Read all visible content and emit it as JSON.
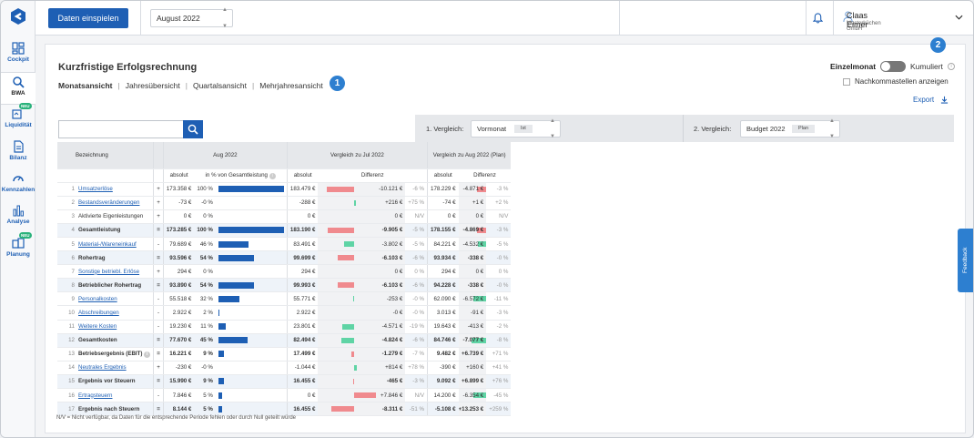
{
  "nav": {
    "items": [
      {
        "label": "Cockpit",
        "icon": "grid-icon"
      },
      {
        "label": "BWA",
        "icon": "bwa-search-icon",
        "active": true
      },
      {
        "label": "Liquidität",
        "icon": "liquidity-icon",
        "badge": "NEU"
      },
      {
        "label": "Bilanz",
        "icon": "document-icon"
      },
      {
        "label": "Kennzahlen",
        "icon": "gauge-icon"
      },
      {
        "label": "Analyse",
        "icon": "bar-chart-icon"
      },
      {
        "label": "Planung",
        "icon": "planning-icon",
        "badge": "NEU"
      }
    ]
  },
  "topbar": {
    "import_label": "Daten einspielen",
    "period": "August 2022",
    "user_name": "Claas Eimer",
    "user_company": "Musterküchen GmbH"
  },
  "page": {
    "title": "Kurzfristige Erfolgsrechnung",
    "tabs": [
      "Monatsansicht",
      "Jahresübersicht",
      "Quartalsansicht",
      "Mehrjahresansicht"
    ],
    "marker1": "1",
    "marker2": "2",
    "toggle_left": "Einzelmonat",
    "toggle_right": "Kumuliert",
    "decimals_label": "Nachkommastellen anzeigen",
    "export_label": "Export",
    "search_placeholder": "",
    "footnote": "N/V = Nicht verfügbar, da Daten für die entsprechende Periode fehlen oder durch Null geteilt würde",
    "feedback_label": "Feedback"
  },
  "compare": {
    "c1_label": "1. Vergleich:",
    "c1_value": "Vormonat",
    "c1_tag": "Ist",
    "c2_label": "2. Vergleich:",
    "c2_value": "Budget 2022",
    "c2_tag": "Plan"
  },
  "table": {
    "h_name": "Bezeichnung",
    "h_aug": "Aug 2022",
    "h_cmp1": "Vergleich zu Jul 2022",
    "h_cmp2": "Vergleich zu Aug 2022 (Plan)",
    "h_abs": "absolut",
    "h_pct": "in % von Gesamtleistung",
    "h_diff": "Differenz",
    "rows": [
      {
        "n": "1",
        "name": "Umsatzerlöse",
        "link": true,
        "op": "+",
        "abs": "173.358 €",
        "pct": "100 %",
        "pv": 100,
        "a1": "183.479 €",
        "d1": "-10.121 €",
        "p1": "-6 %",
        "d1v": -10121,
        "a2": "178.229 €",
        "d2": "-4.871 €",
        "p2": "-3 %",
        "d2v": -4871
      },
      {
        "n": "2",
        "name": "Bestandsveränderungen",
        "link": true,
        "op": "+",
        "abs": "-73 €",
        "pct": "-0 %",
        "pv": 0,
        "a1": "-288 €",
        "d1": "+216 €",
        "p1": "+75 %",
        "d1v": 216,
        "a2": "-74 €",
        "d2": "+1 €",
        "p2": "+2 %",
        "d2v": 1
      },
      {
        "n": "3",
        "name": "Aktivierte Eigenleistungen",
        "op": "+",
        "abs": "0 €",
        "pct": "0 %",
        "pv": 0,
        "a1": "0 €",
        "d1": "0 €",
        "p1": "N/V",
        "d1v": 0,
        "a2": "0 €",
        "d2": "0 €",
        "p2": "N/V",
        "d2v": 0
      },
      {
        "n": "4",
        "name": "Gesamtleistung",
        "bold": true,
        "shade": true,
        "op": "=",
        "abs": "173.285 €",
        "pct": "100 %",
        "pv": 100,
        "a1": "183.190 €",
        "d1": "-9.905 €",
        "p1": "-5 %",
        "d1v": -9905,
        "a2": "178.155 €",
        "d2": "-4.869 €",
        "p2": "-3 %",
        "d2v": -4869
      },
      {
        "n": "5",
        "name": "Material-/Wareneinkauf",
        "link": true,
        "op": "-",
        "abs": "79.689 €",
        "pct": "46 %",
        "pv": 46,
        "a1": "83.491 €",
        "d1": "-3.802 €",
        "p1": "-5 %",
        "d1v": -3802,
        "good1": true,
        "a2": "84.221 €",
        "d2": "-4.532 €",
        "p2": "-5 %",
        "d2v": -4532,
        "good2": true
      },
      {
        "n": "6",
        "name": "Rohertrag",
        "bold": true,
        "shade": true,
        "op": "=",
        "abs": "93.596 €",
        "pct": "54 %",
        "pv": 54,
        "a1": "99.699 €",
        "d1": "-6.103 €",
        "p1": "-6 %",
        "d1v": -6103,
        "a2": "93.934 €",
        "d2": "-338 €",
        "p2": "-0 %",
        "d2v": -338
      },
      {
        "n": "7",
        "name": "Sonstige betriebl. Erlöse",
        "link": true,
        "op": "+",
        "abs": "294 €",
        "pct": "0 %",
        "pv": 0,
        "a1": "294 €",
        "d1": "0 €",
        "p1": "0 %",
        "d1v": 0,
        "a2": "294 €",
        "d2": "0 €",
        "p2": "0 %",
        "d2v": 0
      },
      {
        "n": "8",
        "name": "Betrieblicher Rohertrag",
        "bold": true,
        "shade": true,
        "op": "=",
        "abs": "93.890 €",
        "pct": "54 %",
        "pv": 54,
        "a1": "99.993 €",
        "d1": "-6.103 €",
        "p1": "-6 %",
        "d1v": -6103,
        "a2": "94.228 €",
        "d2": "-338 €",
        "p2": "-0 %",
        "d2v": -338
      },
      {
        "n": "9",
        "name": "Personalkosten",
        "link": true,
        "op": "-",
        "abs": "55.518 €",
        "pct": "32 %",
        "pv": 32,
        "a1": "55.771 €",
        "d1": "-253 €",
        "p1": "-0 %",
        "d1v": -253,
        "good1": true,
        "a2": "62.090 €",
        "d2": "-6.572 €",
        "p2": "-11 %",
        "d2v": -6572,
        "good2": true
      },
      {
        "n": "10",
        "name": "Abschreibungen",
        "link": true,
        "op": "-",
        "abs": "2.922 €",
        "pct": "2 %",
        "pv": 2,
        "a1": "2.922 €",
        "d1": "-0 €",
        "p1": "-0 %",
        "d1v": 0,
        "a2": "3.013 €",
        "d2": "-91 €",
        "p2": "-3 %",
        "d2v": -91,
        "good2": true
      },
      {
        "n": "11",
        "name": "Weitere Kosten",
        "link": true,
        "expand": true,
        "op": "-",
        "abs": "19.230 €",
        "pct": "11 %",
        "pv": 11,
        "a1": "23.801 €",
        "d1": "-4.571 €",
        "p1": "-19 %",
        "d1v": -4571,
        "good1": true,
        "a2": "19.643 €",
        "d2": "-413 €",
        "p2": "-2 %",
        "d2v": -413,
        "good2": true
      },
      {
        "n": "12",
        "name": "Gesamtkosten",
        "bold": true,
        "shade": true,
        "op": "=",
        "abs": "77.670 €",
        "pct": "45 %",
        "pv": 45,
        "a1": "82.494 €",
        "d1": "-4.824 €",
        "p1": "-6 %",
        "d1v": -4824,
        "good1": true,
        "a2": "84.746 €",
        "d2": "-7.077 €",
        "p2": "-8 %",
        "d2v": -7077,
        "good2": true
      },
      {
        "n": "13",
        "name": "Betriebsergebnis (EBIT)",
        "bold": true,
        "info": true,
        "op": "=",
        "abs": "16.221 €",
        "pct": "9 %",
        "pv": 9,
        "a1": "17.499 €",
        "d1": "-1.279 €",
        "p1": "-7 %",
        "d1v": -1279,
        "a2": "9.482 €",
        "d2": "+6.739 €",
        "p2": "+71 %",
        "d2v": 6739,
        "good2": true
      },
      {
        "n": "14",
        "name": "Neutrales Ergebnis",
        "link": true,
        "expand": true,
        "op": "+",
        "abs": "-230 €",
        "pct": "-0 %",
        "pv": 0,
        "a1": "-1.044 €",
        "d1": "+814 €",
        "p1": "+78 %",
        "d1v": 814,
        "good1": true,
        "a2": "-390 €",
        "d2": "+160 €",
        "p2": "+41 %",
        "d2v": 160,
        "good2": true
      },
      {
        "n": "15",
        "name": "Ergebnis vor Steuern",
        "bold": true,
        "shade": true,
        "op": "=",
        "abs": "15.990 €",
        "pct": "9 %",
        "pv": 9,
        "a1": "16.455 €",
        "d1": "-465 €",
        "p1": "-3 %",
        "d1v": -465,
        "a2": "9.092 €",
        "d2": "+6.899 €",
        "p2": "+76 %",
        "d2v": 6899,
        "good2": true
      },
      {
        "n": "16",
        "name": "Ertragsteuern",
        "link": true,
        "op": "-",
        "abs": "7.846 €",
        "pct": "5 %",
        "pv": 5,
        "a1": "0 €",
        "d1": "+7.846 €",
        "p1": "N/V",
        "d1v": 7846,
        "bad1": true,
        "a2": "14.200 €",
        "d2": "-6.354 €",
        "p2": "-45 %",
        "d2v": -6354,
        "good2": true
      },
      {
        "n": "17",
        "name": "Ergebnis nach Steuern",
        "bold": true,
        "shade": true,
        "op": "=",
        "abs": "8.144 €",
        "pct": "5 %",
        "pv": 5,
        "a1": "16.455 €",
        "d1": "-8.311 €",
        "p1": "-51 %",
        "d1v": -8311,
        "a2": "-5.108 €",
        "d2": "+13.253 €",
        "p2": "+259 %",
        "d2v": 13253,
        "good2": true
      }
    ]
  }
}
